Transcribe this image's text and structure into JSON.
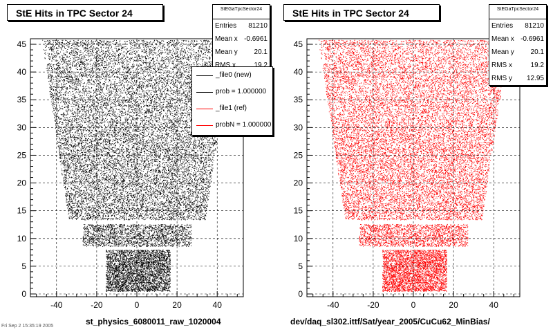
{
  "footer_text": "Fri Sep 2 15:35:19 2005",
  "chart_data": [
    {
      "type": "scatter",
      "title": "StE Hits in TPC Sector 24",
      "xlabel": "st_physics_6080011_raw_1020004",
      "ylabel": "",
      "xlim": [
        -53,
        53
      ],
      "ylim": [
        -0.5,
        46
      ],
      "x_ticks": [
        -40,
        -20,
        0,
        20,
        40
      ],
      "y_ticks": [
        0,
        5,
        10,
        15,
        20,
        25,
        30,
        35,
        40,
        45
      ],
      "grid": true,
      "color": "#000000",
      "stats": {
        "name": "StEGaTpcSector24",
        "rows": [
          {
            "label": "Entries",
            "value": "81210"
          },
          {
            "label": "Mean x",
            "value": "-0.6961"
          },
          {
            "label": "Mean y",
            "value": "20.1"
          },
          {
            "label": "RMS x",
            "value": "19.2"
          }
        ]
      },
      "legend": [
        {
          "label": "_file0 (new)",
          "color": "#000000"
        },
        {
          "label": "prob = 1.000000",
          "color": "#000000"
        },
        {
          "label": "_file1 (ref)",
          "color": "#ff0000"
        },
        {
          "label": "probN = 1.000000",
          "color": "#ff0000"
        }
      ],
      "legend_position": "top-right"
    },
    {
      "type": "scatter",
      "title": "StE Hits in TPC Sector 24",
      "xlabel": "dev/daq_sl302.ittf/Sat/year_2005/CuCu62_MinBias/",
      "ylabel": "",
      "xlim": [
        -53,
        53
      ],
      "ylim": [
        -0.5,
        46
      ],
      "x_ticks": [
        -40,
        -20,
        0,
        20,
        40
      ],
      "y_ticks": [
        0,
        5,
        10,
        15,
        20,
        25,
        30,
        35,
        40,
        45
      ],
      "grid": true,
      "color": "#ff0000",
      "stats": {
        "name": "StEGaTpcSector24",
        "rows": [
          {
            "label": "Entries",
            "value": "81210"
          },
          {
            "label": "Mean x",
            "value": "-0.6961"
          },
          {
            "label": "Mean y",
            "value": "20.1"
          },
          {
            "label": "RMS x",
            "value": "19.2"
          },
          {
            "label": "RMS y",
            "value": "12.95"
          }
        ]
      }
    }
  ]
}
